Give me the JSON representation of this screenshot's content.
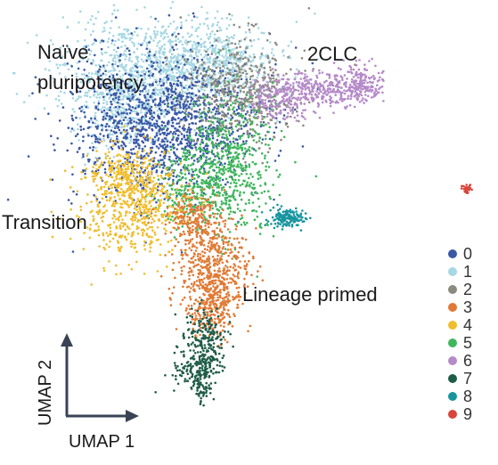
{
  "chart_data": {
    "type": "scatter",
    "title": "",
    "xlabel": "UMAP 1",
    "ylabel": "UMAP 2",
    "grid": false,
    "legend_position": "right",
    "annotations": [
      "Naïve pluripotency",
      "2CLC",
      "Transition",
      "Lineage primed"
    ],
    "annotation_lines": [
      [
        "Naïve",
        "pluripotency"
      ],
      [
        "2CLC"
      ],
      [
        "Transition"
      ],
      [
        "Lineage primed"
      ]
    ],
    "clusters": [
      {
        "label": "0",
        "color": "#3b58a7"
      },
      {
        "label": "1",
        "color": "#a6d7e3"
      },
      {
        "label": "2",
        "color": "#8c8a7f"
      },
      {
        "label": "3",
        "color": "#e07a35"
      },
      {
        "label": "4",
        "color": "#f0bd2e"
      },
      {
        "label": "5",
        "color": "#3fb65c"
      },
      {
        "label": "6",
        "color": "#b58ac9"
      },
      {
        "label": "7",
        "color": "#1f5c48"
      },
      {
        "label": "8",
        "color": "#17959f"
      },
      {
        "label": "9",
        "color": "#d9443a"
      }
    ]
  }
}
